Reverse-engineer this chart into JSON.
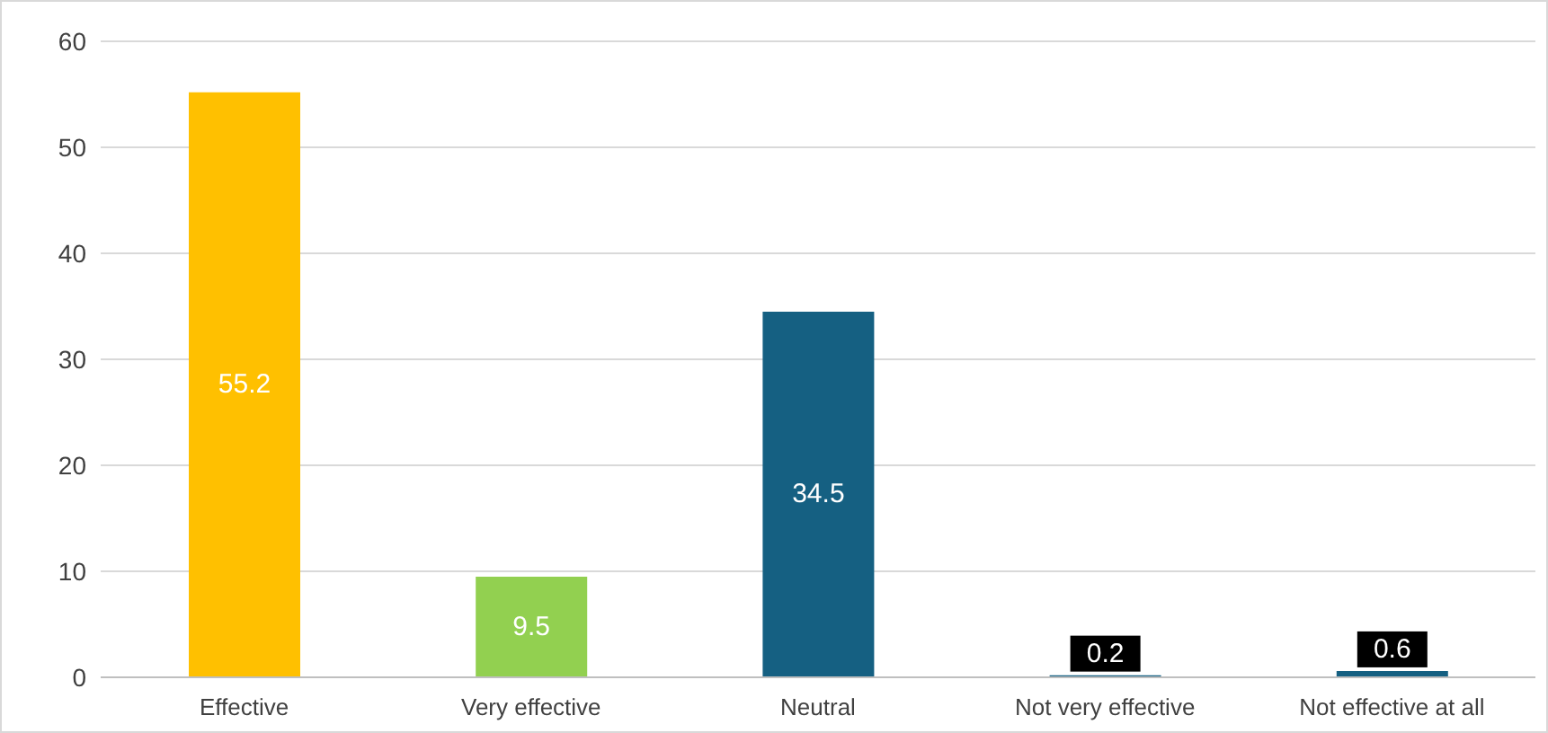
{
  "chart_data": {
    "type": "bar",
    "categories": [
      "Effective",
      "Very effective",
      "Neutral",
      "Not very effective",
      "Not effective at all"
    ],
    "values": [
      55.2,
      9.5,
      34.5,
      0.2,
      0.6
    ],
    "colors": [
      "#ffc000",
      "#92d050",
      "#156082",
      "#156082",
      "#156082"
    ],
    "ylim": [
      0,
      60
    ],
    "yticks": [
      0,
      10,
      20,
      30,
      40,
      50,
      60
    ],
    "grid": "y",
    "data_labels": true
  }
}
